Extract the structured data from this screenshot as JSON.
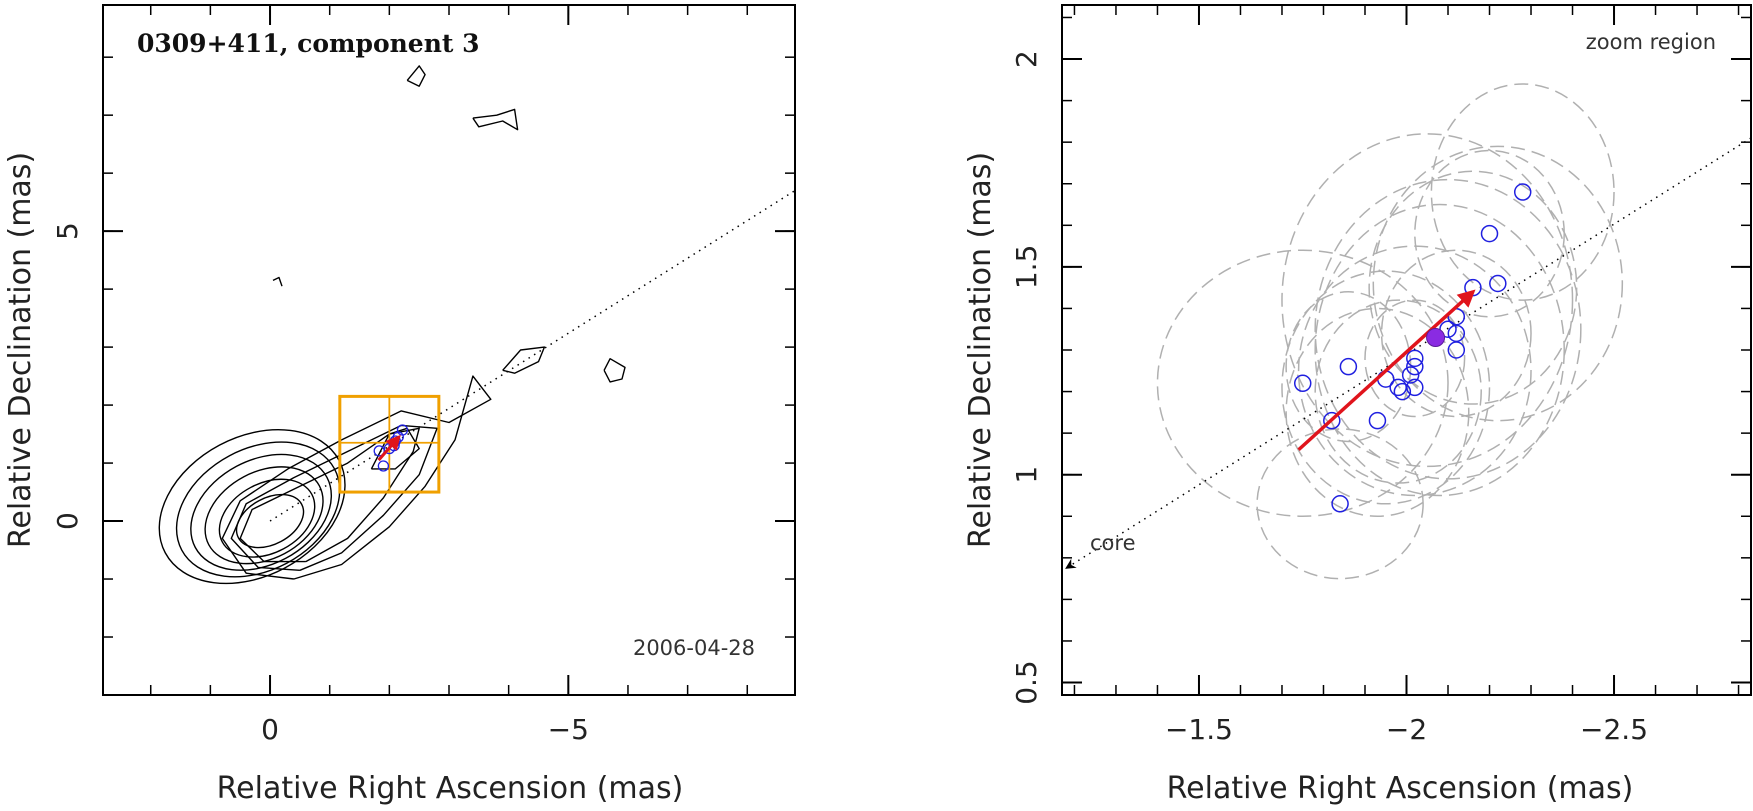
{
  "chart_data": [
    {
      "type": "contour",
      "title": "0309+411, component 3",
      "epoch_label": "2006-04-28",
      "xlabel": "Relative Right Ascension (mas)",
      "ylabel": "Relative Declination (mas)",
      "xlim": [
        2.8,
        -8.8
      ],
      "ylim": [
        -3.0,
        8.9
      ],
      "x_ticks": [
        {
          "value": 0,
          "label": "0"
        },
        {
          "value": -5,
          "label": "−5"
        }
      ],
      "y_ticks": [
        {
          "value": 0,
          "label": "0"
        },
        {
          "value": 5,
          "label": "5"
        }
      ],
      "x_minor_step": 1,
      "y_minor_step": 1,
      "core_contours": [
        {
          "cx": 0.0,
          "cy": 0.0,
          "rx": 0.6,
          "ry": 0.4
        },
        {
          "cx": 0.05,
          "cy": 0.05,
          "rx": 0.85,
          "ry": 0.6
        },
        {
          "cx": 0.1,
          "cy": 0.1,
          "rx": 1.05,
          "ry": 0.75
        },
        {
          "cx": 0.15,
          "cy": 0.15,
          "rx": 1.25,
          "ry": 0.9
        },
        {
          "cx": 0.2,
          "cy": 0.2,
          "rx": 1.45,
          "ry": 1.05
        },
        {
          "cx": 0.3,
          "cy": 0.25,
          "rx": 1.65,
          "ry": 1.2
        }
      ],
      "extended_contours": [
        [
          [
            -0.4,
            -1.0
          ],
          [
            -1.2,
            -0.75
          ],
          [
            -2.0,
            -0.1
          ],
          [
            -2.6,
            0.6
          ],
          [
            -3.1,
            1.4
          ],
          [
            -3.4,
            2.5
          ],
          [
            -3.7,
            2.1
          ],
          [
            -3.0,
            1.7
          ],
          [
            -2.2,
            1.9
          ],
          [
            -1.2,
            1.4
          ],
          [
            -0.3,
            0.9
          ],
          [
            0.5,
            0.35
          ],
          [
            0.8,
            -0.3
          ],
          [
            0.4,
            -0.9
          ],
          [
            -0.4,
            -1.0
          ]
        ],
        [
          [
            -0.5,
            -0.85
          ],
          [
            -1.2,
            -0.55
          ],
          [
            -1.9,
            0.1
          ],
          [
            -2.5,
            0.8
          ],
          [
            -2.8,
            1.6
          ],
          [
            -2.2,
            1.65
          ],
          [
            -1.3,
            1.2
          ],
          [
            -0.4,
            0.75
          ],
          [
            0.4,
            0.3
          ],
          [
            0.65,
            -0.3
          ],
          [
            0.2,
            -0.8
          ],
          [
            -0.5,
            -0.85
          ]
        ],
        [
          [
            -0.6,
            -0.7
          ],
          [
            -1.3,
            -0.3
          ],
          [
            -1.9,
            0.4
          ],
          [
            -2.4,
            1.2
          ],
          [
            -2.5,
            1.6
          ],
          [
            -2.0,
            1.5
          ],
          [
            -1.3,
            1.0
          ],
          [
            -0.5,
            0.6
          ],
          [
            0.3,
            0.2
          ],
          [
            0.5,
            -0.3
          ],
          [
            0.1,
            -0.7
          ],
          [
            -0.6,
            -0.7
          ]
        ],
        [
          [
            -1.7,
            0.9
          ],
          [
            -2.0,
            1.5
          ],
          [
            -2.3,
            1.6
          ],
          [
            -2.5,
            1.25
          ],
          [
            -2.1,
            0.9
          ],
          [
            -1.7,
            0.9
          ]
        ],
        [
          [
            -2.3,
            7.6
          ],
          [
            -2.5,
            7.85
          ],
          [
            -2.6,
            7.7
          ],
          [
            -2.5,
            7.5
          ],
          [
            -2.3,
            7.6
          ]
        ],
        [
          [
            -3.4,
            6.95
          ],
          [
            -3.8,
            7.0
          ],
          [
            -4.1,
            7.1
          ],
          [
            -4.15,
            6.75
          ],
          [
            -3.9,
            6.9
          ],
          [
            -3.5,
            6.8
          ],
          [
            -3.4,
            6.95
          ]
        ],
        [
          [
            -0.05,
            4.15
          ],
          [
            -0.15,
            4.2
          ],
          [
            -0.2,
            4.05
          ]
        ],
        [
          [
            -3.9,
            2.6
          ],
          [
            -4.2,
            2.95
          ],
          [
            -4.6,
            3.0
          ],
          [
            -4.5,
            2.75
          ],
          [
            -4.1,
            2.55
          ],
          [
            -3.9,
            2.6
          ]
        ],
        [
          [
            -5.6,
            2.6
          ],
          [
            -5.7,
            2.8
          ],
          [
            -5.95,
            2.65
          ],
          [
            -5.9,
            2.45
          ],
          [
            -5.7,
            2.4
          ],
          [
            -5.6,
            2.6
          ]
        ]
      ],
      "zoom_box": {
        "x": [
          -1.17,
          -2.83
        ],
        "y": [
          0.5,
          2.15
        ]
      },
      "zoom_crosshair": {
        "x": -2.0,
        "y": 1.35
      },
      "trajectory_line": {
        "x": [
          0,
          -8.8
        ],
        "y": [
          0,
          5.7
        ]
      },
      "component_positions": [
        {
          "x": -1.83,
          "y": 1.21
        },
        {
          "x": -1.9,
          "y": 0.95
        },
        {
          "x": -2.0,
          "y": 1.25
        },
        {
          "x": -2.08,
          "y": 1.3
        },
        {
          "x": -2.15,
          "y": 1.45
        },
        {
          "x": -2.22,
          "y": 1.57
        },
        {
          "x": -2.1,
          "y": 1.38
        }
      ],
      "arrow": {
        "x": [
          -1.82,
          -2.16
        ],
        "y": [
          1.05,
          1.45
        ]
      }
    },
    {
      "type": "scatter",
      "title": "zoom region",
      "xlabel": "Relative Right Ascension (mas)",
      "ylabel": "Relative Declination (mas)",
      "xlim": [
        -1.17,
        -2.83
      ],
      "ylim": [
        0.47,
        2.13
      ],
      "x_ticks": [
        {
          "value": -1.5,
          "label": "−1.5"
        },
        {
          "value": -2,
          "label": "−2"
        },
        {
          "value": -2.5,
          "label": "−2.5"
        }
      ],
      "y_ticks": [
        {
          "value": 0.5,
          "label": "0.5"
        },
        {
          "value": 1,
          "label": "1"
        },
        {
          "value": 1.5,
          "label": "1.5"
        },
        {
          "value": 2,
          "label": "2"
        }
      ],
      "x_minor_step": 0.1,
      "y_minor_step": 0.1,
      "points": [
        {
          "x": -1.75,
          "y": 1.22
        },
        {
          "x": -1.82,
          "y": 1.13
        },
        {
          "x": -1.84,
          "y": 0.93
        },
        {
          "x": -1.86,
          "y": 1.26
        },
        {
          "x": -1.93,
          "y": 1.13
        },
        {
          "x": -1.95,
          "y": 1.23
        },
        {
          "x": -1.98,
          "y": 1.21
        },
        {
          "x": -1.99,
          "y": 1.2
        },
        {
          "x": -2.01,
          "y": 1.24
        },
        {
          "x": -2.02,
          "y": 1.28
        },
        {
          "x": -2.02,
          "y": 1.21
        },
        {
          "x": -2.02,
          "y": 1.26
        },
        {
          "x": -2.1,
          "y": 1.35
        },
        {
          "x": -2.12,
          "y": 1.38
        },
        {
          "x": -2.12,
          "y": 1.34
        },
        {
          "x": -2.12,
          "y": 1.3
        },
        {
          "x": -2.16,
          "y": 1.45
        },
        {
          "x": -2.2,
          "y": 1.58
        },
        {
          "x": -2.22,
          "y": 1.46
        },
        {
          "x": -2.28,
          "y": 1.68
        }
      ],
      "mean_position": {
        "x": -2.07,
        "y": 1.33
      },
      "error_ellipses": [
        {
          "cx": -1.75,
          "cy": 1.22,
          "rx": 0.35,
          "ry": 0.32
        },
        {
          "cx": -2.05,
          "cy": 1.42,
          "rx": 0.35,
          "ry": 0.4
        },
        {
          "cx": -2.08,
          "cy": 1.3,
          "rx": 0.3,
          "ry": 0.35
        },
        {
          "cx": -2.02,
          "cy": 1.25,
          "rx": 0.28,
          "ry": 0.3
        },
        {
          "cx": -1.95,
          "cy": 1.21,
          "rx": 0.25,
          "ry": 0.28
        },
        {
          "cx": -1.93,
          "cy": 1.15,
          "rx": 0.22,
          "ry": 0.25
        },
        {
          "cx": -1.98,
          "cy": 1.2,
          "rx": 0.2,
          "ry": 0.22
        },
        {
          "cx": -2.12,
          "cy": 1.34,
          "rx": 0.18,
          "ry": 0.2
        },
        {
          "cx": -2.16,
          "cy": 1.45,
          "rx": 0.25,
          "ry": 0.28
        },
        {
          "cx": -2.22,
          "cy": 1.46,
          "rx": 0.3,
          "ry": 0.33
        },
        {
          "cx": -2.28,
          "cy": 1.68,
          "rx": 0.22,
          "ry": 0.26
        },
        {
          "cx": -2.2,
          "cy": 1.58,
          "rx": 0.18,
          "ry": 0.2
        },
        {
          "cx": -1.84,
          "cy": 0.93,
          "rx": 0.2,
          "ry": 0.18
        },
        {
          "cx": -1.86,
          "cy": 1.26,
          "rx": 0.15,
          "ry": 0.18
        },
        {
          "cx": -2.1,
          "cy": 1.35,
          "rx": 0.32,
          "ry": 0.36
        },
        {
          "cx": -2.02,
          "cy": 1.28,
          "rx": 0.12,
          "ry": 0.14
        }
      ],
      "trajectory_line": {
        "x": [
          -1.17,
          -2.83
        ],
        "y": [
          0.77,
          1.81
        ]
      },
      "arrow": {
        "x": [
          -1.74,
          -2.16
        ],
        "y": [
          1.06,
          1.44
        ]
      },
      "core_label": "core",
      "core_arrow_tip": {
        "x": -1.17,
        "y": 0.77
      }
    }
  ]
}
